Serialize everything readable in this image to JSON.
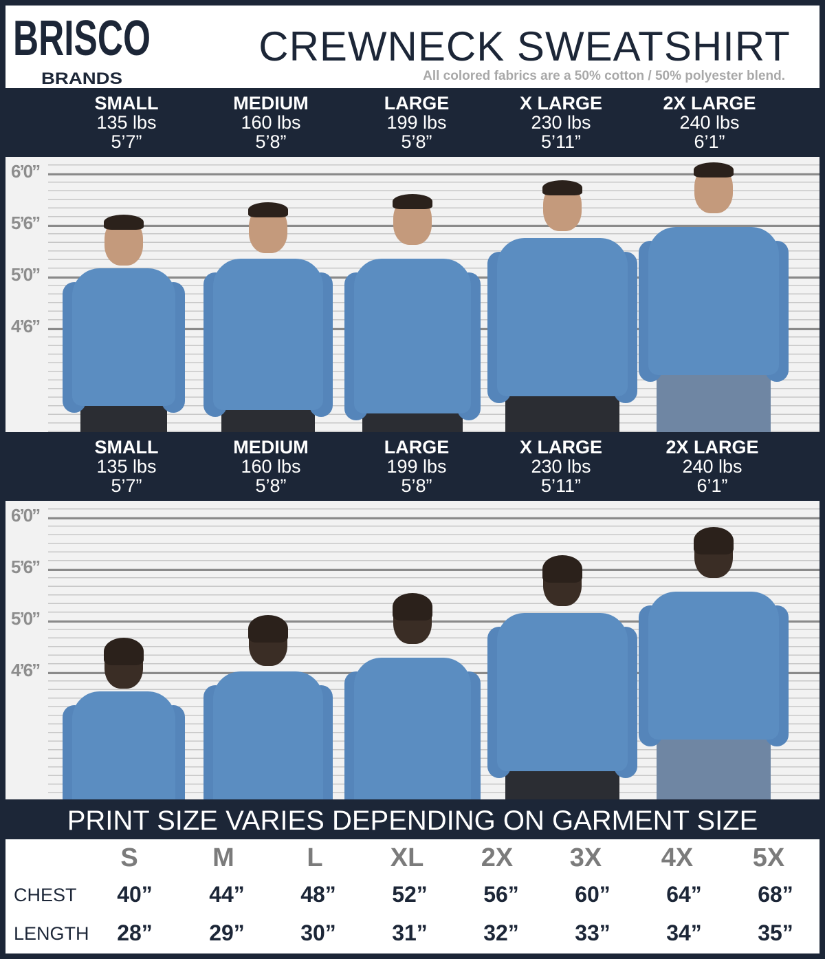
{
  "brand": {
    "logo_top": "BRISCO",
    "logo_bottom": "BRANDS"
  },
  "header": {
    "title": "CREWNECK SWEATSHIRT",
    "subtitle": "All colored fabrics are a 50% cotton / 50% polyester blend."
  },
  "front_sizes": [
    {
      "name": "SMALL",
      "weight": "135 lbs",
      "height": "5’7”"
    },
    {
      "name": "MEDIUM",
      "weight": "160 lbs",
      "height": "5’8”"
    },
    {
      "name": "LARGE",
      "weight": "199 lbs",
      "height": "5’8”"
    },
    {
      "name": "X LARGE",
      "weight": "230 lbs",
      "height": "5’11”"
    },
    {
      "name": "2X LARGE",
      "weight": "240 lbs",
      "height": "6’1”"
    }
  ],
  "back_sizes": [
    {
      "name": "SMALL",
      "weight": "135 lbs",
      "height": "5’7”"
    },
    {
      "name": "MEDIUM",
      "weight": "160 lbs",
      "height": "5’8”"
    },
    {
      "name": "LARGE",
      "weight": "199 lbs",
      "height": "5’8”"
    },
    {
      "name": "X LARGE",
      "weight": "230 lbs",
      "height": "5’11”"
    },
    {
      "name": "2X LARGE",
      "weight": "240 lbs",
      "height": "6’1”"
    }
  ],
  "height_marks": [
    "6’0”",
    "5’6”",
    "5’0”",
    "4’6”"
  ],
  "print_notice": "PRINT SIZE VARIES DEPENDING ON GARMENT SIZE",
  "size_table": {
    "headers": [
      "S",
      "M",
      "L",
      "XL",
      "2X",
      "3X",
      "4X",
      "5X"
    ],
    "rows": [
      {
        "label": "CHEST",
        "values": [
          "40”",
          "44”",
          "48”",
          "52”",
          "56”",
          "60”",
          "64”",
          "68”"
        ]
      },
      {
        "label": "LENGTH",
        "values": [
          "28”",
          "29”",
          "30”",
          "31”",
          "32”",
          "33”",
          "34”",
          "35”"
        ]
      }
    ]
  },
  "colors": {
    "navy": "#1c2637",
    "shirt": "#5b8dc1",
    "header_gray": "#7b7b7b"
  }
}
